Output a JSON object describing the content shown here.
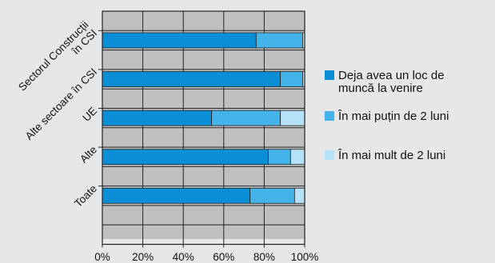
{
  "chart_data": {
    "type": "bar",
    "orientation": "horizontal",
    "stacked": true,
    "categories": [
      [
        "Sectorul Construcții",
        "în CSI"
      ],
      [
        "Alte sectoare în CSI"
      ],
      [
        "UE"
      ],
      [
        "Alte"
      ],
      [
        "Toate"
      ]
    ],
    "series": [
      {
        "name": "Deja avea un loc de muncă la venire",
        "color": "#0a8fd6",
        "values": [
          76,
          88,
          54,
          82,
          73
        ]
      },
      {
        "name": "În mai puțin de 2 luni",
        "color": "#44b3ea",
        "values": [
          23,
          11,
          34,
          11,
          22
        ]
      },
      {
        "name": "În mai mult de 2 luni",
        "color": "#b6e2f8",
        "values": [
          1,
          1,
          12,
          7,
          5
        ]
      }
    ],
    "legend_lines": [
      [
        "Deja avea un loc de",
        "muncă la venire"
      ],
      [
        "În mai puțin de 2 luni"
      ],
      [
        "În mai mult de 2 luni"
      ]
    ],
    "x_ticks": [
      "0%",
      "20%",
      "40%",
      "60%",
      "80%",
      "100%"
    ],
    "xlim": [
      0,
      100
    ],
    "grid": true,
    "legend_position": "right",
    "plot_background": "#c0c0c0",
    "frame_color": "#222222"
  }
}
